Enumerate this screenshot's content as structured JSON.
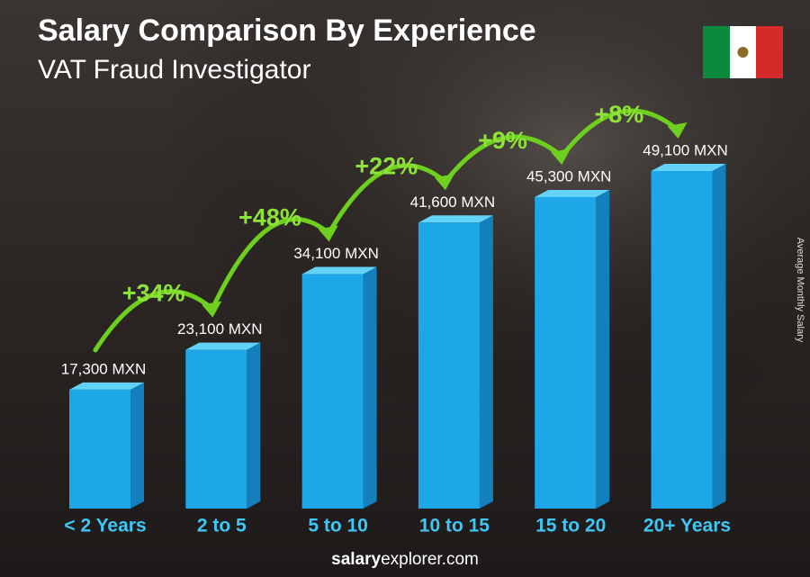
{
  "chart_data": {
    "type": "bar3d",
    "title": "Salary Comparison By Experience",
    "subtitle": "VAT Fraud Investigator",
    "y_label": "Average Monthly Salary",
    "categories": [
      "< 2 Years",
      "2 to 5",
      "5 to 10",
      "10 to 15",
      "15 to 20",
      "20+ Years"
    ],
    "values": [
      17300,
      23100,
      34100,
      41600,
      45300,
      49100
    ],
    "value_labels": [
      "17,300 MXN",
      "23,100 MXN",
      "34,100 MXN",
      "41,600 MXN",
      "45,300 MXN",
      "49,100 MXN"
    ],
    "changes": [
      "+34%",
      "+48%",
      "+22%",
      "+9%",
      "+8%"
    ],
    "color": "#1ea7e8",
    "footer": {
      "bold": "salary",
      "rest": "explorer.com"
    }
  }
}
